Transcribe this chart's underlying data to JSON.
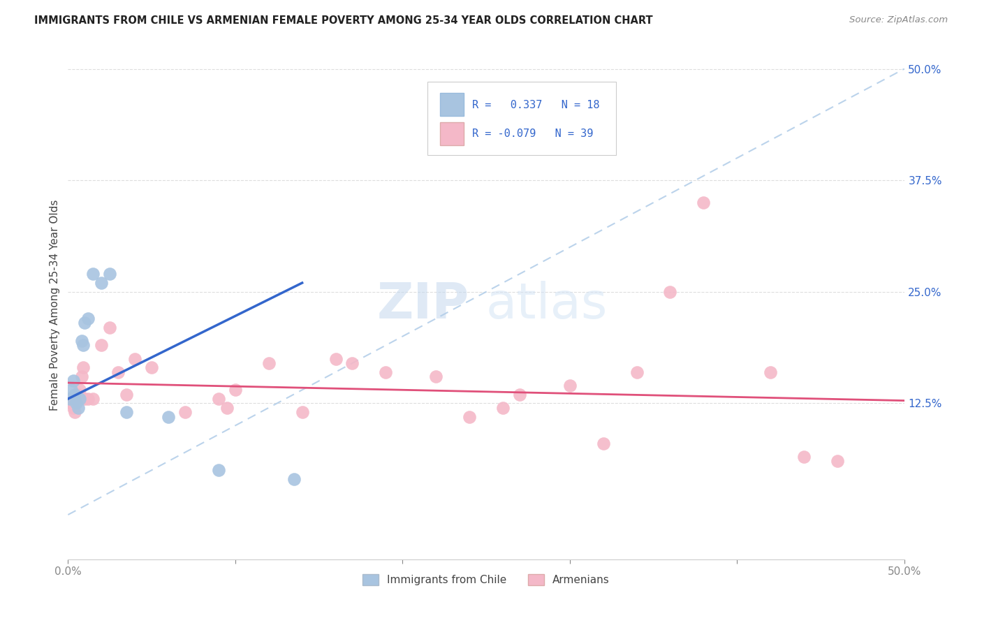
{
  "title": "IMMIGRANTS FROM CHILE VS ARMENIAN FEMALE POVERTY AMONG 25-34 YEAR OLDS CORRELATION CHART",
  "source": "Source: ZipAtlas.com",
  "ylabel": "Female Poverty Among 25-34 Year Olds",
  "xlim": [
    0.0,
    0.5
  ],
  "ylim": [
    -0.05,
    0.52
  ],
  "ytick_labels": [
    "12.5%",
    "25.0%",
    "37.5%",
    "50.0%"
  ],
  "ytick_values": [
    0.125,
    0.25,
    0.375,
    0.5
  ],
  "hlines": [
    0.125,
    0.25,
    0.375,
    0.5
  ],
  "chile_color": "#a8c4e0",
  "armenian_color": "#f4b8c8",
  "chile_line_color": "#3366cc",
  "armenian_line_color": "#e0507a",
  "dashed_line_color": "#b0cce8",
  "legend_text_color": "#3366cc",
  "chile_R": 0.337,
  "chile_N": 18,
  "armenian_R": -0.079,
  "armenian_N": 39,
  "watermark_zip": "ZIP",
  "watermark_atlas": "atlas",
  "chile_points_x": [
    0.001,
    0.002,
    0.003,
    0.004,
    0.005,
    0.006,
    0.007,
    0.008,
    0.009,
    0.01,
    0.012,
    0.015,
    0.02,
    0.025,
    0.035,
    0.06,
    0.09,
    0.135
  ],
  "chile_points_y": [
    0.13,
    0.14,
    0.15,
    0.135,
    0.125,
    0.12,
    0.13,
    0.195,
    0.19,
    0.215,
    0.22,
    0.27,
    0.26,
    0.27,
    0.115,
    0.11,
    0.05,
    0.04
  ],
  "armenian_points_x": [
    0.001,
    0.002,
    0.003,
    0.004,
    0.005,
    0.006,
    0.007,
    0.008,
    0.009,
    0.01,
    0.012,
    0.015,
    0.02,
    0.025,
    0.03,
    0.035,
    0.04,
    0.05,
    0.07,
    0.09,
    0.095,
    0.1,
    0.12,
    0.14,
    0.16,
    0.17,
    0.19,
    0.22,
    0.24,
    0.26,
    0.27,
    0.3,
    0.32,
    0.34,
    0.36,
    0.38,
    0.42,
    0.44,
    0.46
  ],
  "armenian_points_y": [
    0.13,
    0.125,
    0.12,
    0.115,
    0.13,
    0.135,
    0.14,
    0.155,
    0.165,
    0.13,
    0.13,
    0.13,
    0.19,
    0.21,
    0.16,
    0.135,
    0.175,
    0.165,
    0.115,
    0.13,
    0.12,
    0.14,
    0.17,
    0.115,
    0.175,
    0.17,
    0.16,
    0.155,
    0.11,
    0.12,
    0.135,
    0.145,
    0.08,
    0.16,
    0.25,
    0.35,
    0.16,
    0.065,
    0.06
  ],
  "chile_line_x0": 0.0,
  "chile_line_y0": 0.13,
  "chile_line_x1": 0.14,
  "chile_line_y1": 0.26,
  "armenian_line_x0": 0.0,
  "armenian_line_y0": 0.148,
  "armenian_line_x1": 0.5,
  "armenian_line_y1": 0.128
}
